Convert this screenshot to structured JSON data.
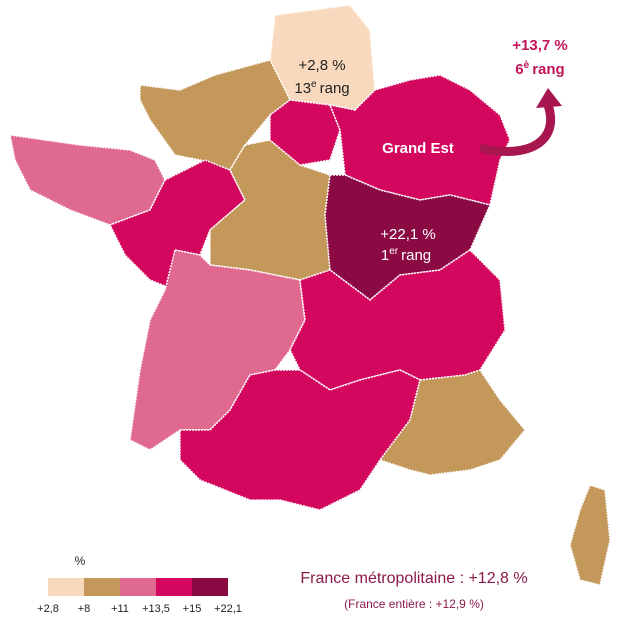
{
  "annotations": {
    "hauts_de_france": {
      "value": "+2,8 %",
      "rank_number": "13",
      "rank_suffix": "e",
      "rank_word": "rang"
    },
    "grand_est": {
      "name": "Grand Est",
      "value": "+13,7 %",
      "rank_number": "6",
      "rank_suffix": "è",
      "rank_word": "rang"
    },
    "bourgogne": {
      "value": "+22,1 %",
      "rank_number": "1",
      "rank_suffix": "er",
      "rank_word": "rang"
    }
  },
  "legend": {
    "title": "%",
    "ticks": [
      "+2,8",
      "+8",
      "+11",
      "+13,5",
      "+15",
      "+22,1"
    ],
    "colors": [
      "#f9d9bd",
      "#c4975a",
      "#e06a8f",
      "#d4075f",
      "#8b0a44"
    ]
  },
  "summary": {
    "main": "France métropolitaine : +12,8 %",
    "secondary": "(France entière : +12,9 %)"
  }
}
